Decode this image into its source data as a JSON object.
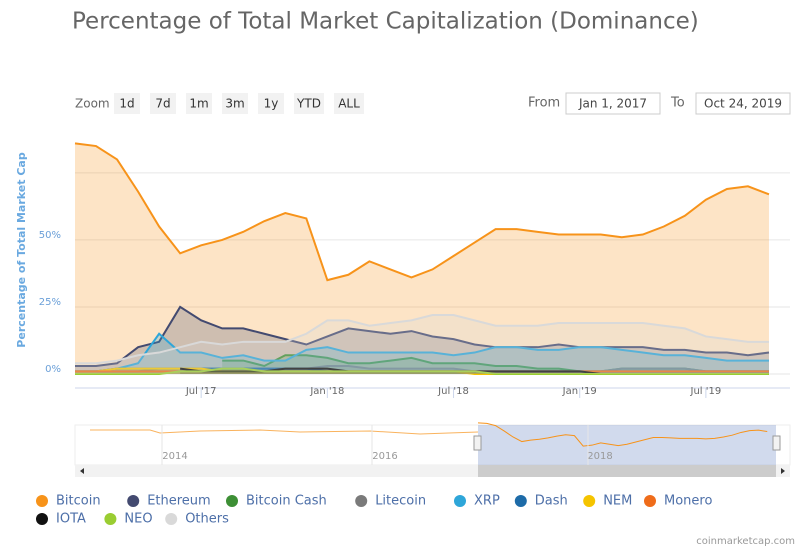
{
  "chart_data": {
    "type": "area",
    "title": "Percentage of Total Market Capitalization (Dominance)",
    "y_label": "Percentage of Total Market Cap",
    "x": [
      "2017-01",
      "2017-02",
      "2017-03",
      "2017-04",
      "2017-05",
      "2017-06",
      "2017-07",
      "2017-08",
      "2017-09",
      "2017-10",
      "2017-11",
      "2017-12",
      "2018-01",
      "2018-02",
      "2018-03",
      "2018-04",
      "2018-05",
      "2018-06",
      "2018-07",
      "2018-08",
      "2018-09",
      "2018-10",
      "2018-11",
      "2018-12",
      "2019-01",
      "2019-02",
      "2019-03",
      "2019-04",
      "2019-05",
      "2019-06",
      "2019-07",
      "2019-08",
      "2019-09",
      "2019-10"
    ],
    "xlim": [
      "2017-01",
      "2019-11"
    ],
    "xticks": [
      {
        "value": "2017-07",
        "label": "Jul '17"
      },
      {
        "value": "2018-01",
        "label": "Jan '18"
      },
      {
        "value": "2018-07",
        "label": "Jul '18"
      },
      {
        "value": "2019-01",
        "label": "Jan '19"
      },
      {
        "value": "2019-07",
        "label": "Jul '19"
      }
    ],
    "ylim": [
      0,
      88
    ],
    "yticks": [
      {
        "value": 0,
        "label": "0%"
      },
      {
        "value": 25,
        "label": "25%"
      },
      {
        "value": 50,
        "label": "50%"
      },
      {
        "value": 75,
        "label": null
      }
    ],
    "grid": true,
    "series": [
      {
        "name": "Bitcoin",
        "color": "#f7931a",
        "values": [
          86,
          85,
          80,
          68,
          55,
          45,
          48,
          50,
          53,
          57,
          60,
          58,
          35,
          37,
          42,
          39,
          36,
          39,
          44,
          49,
          54,
          54,
          53,
          52,
          52,
          52,
          51,
          52,
          55,
          59,
          65,
          69,
          70,
          67
        ]
      },
      {
        "name": "Ethereum",
        "color": "#434a70",
        "values": [
          3,
          3,
          4,
          10,
          12,
          25,
          20,
          17,
          17,
          15,
          13,
          11,
          14,
          17,
          16,
          15,
          16,
          14,
          13,
          11,
          10,
          10,
          10,
          11,
          10,
          10,
          10,
          10,
          9,
          9,
          8,
          8,
          7,
          8
        ]
      },
      {
        "name": "Bitcoin Cash",
        "color": "#3d8f35",
        "values": [
          null,
          null,
          null,
          null,
          null,
          null,
          null,
          5,
          5,
          3,
          7,
          7,
          6,
          4,
          4,
          5,
          6,
          4,
          4,
          4,
          3,
          3,
          2,
          2,
          1,
          1,
          2,
          2,
          2,
          2,
          1,
          1,
          1,
          1
        ]
      },
      {
        "name": "Litecoin",
        "color": "#7a7a7a",
        "values": [
          1,
          1,
          1,
          1,
          2,
          2,
          2,
          2,
          2,
          2,
          2,
          2,
          3,
          3,
          2,
          2,
          2,
          2,
          2,
          1,
          1,
          1,
          1,
          1,
          1,
          1,
          2,
          2,
          2,
          2,
          1,
          1,
          1,
          1
        ]
      },
      {
        "name": "XRP",
        "color": "#2ea6d9",
        "values": [
          1,
          1,
          2,
          4,
          15,
          8,
          8,
          6,
          7,
          5,
          5,
          9,
          10,
          8,
          8,
          8,
          8,
          8,
          7,
          8,
          10,
          10,
          9,
          9,
          10,
          10,
          9,
          8,
          7,
          7,
          6,
          5,
          5,
          5
        ]
      },
      {
        "name": "Dash",
        "color": "#1d6ba8",
        "values": [
          1,
          1,
          2,
          2,
          2,
          2,
          2,
          2,
          2,
          2,
          2,
          2,
          1,
          1,
          1,
          1,
          1,
          1,
          1,
          1,
          1,
          1,
          1,
          1,
          1,
          1,
          1,
          1,
          1,
          1,
          1,
          1,
          1,
          1
        ]
      },
      {
        "name": "NEM",
        "color": "#f5c400",
        "values": [
          1,
          1,
          2,
          2,
          2,
          2,
          2,
          1,
          1,
          1,
          1,
          1,
          1,
          1,
          1,
          1,
          1,
          1,
          1,
          0,
          0,
          0,
          0,
          0,
          0,
          0,
          0,
          0,
          0,
          0,
          0,
          0,
          0,
          0
        ]
      },
      {
        "name": "Monero",
        "color": "#ef6c1a",
        "values": [
          1,
          1,
          1,
          1,
          1,
          1,
          1,
          1,
          1,
          1,
          1,
          1,
          1,
          1,
          1,
          1,
          1,
          1,
          1,
          1,
          1,
          1,
          1,
          1,
          1,
          1,
          1,
          1,
          1,
          1,
          1,
          1,
          1,
          1
        ]
      },
      {
        "name": "IOTA",
        "color": "#111111",
        "values": [
          null,
          null,
          null,
          null,
          null,
          2,
          1,
          1,
          1,
          1,
          2,
          2,
          2,
          1,
          1,
          1,
          1,
          1,
          1,
          1,
          1,
          1,
          1,
          1,
          1,
          0,
          0,
          0,
          0,
          0,
          0,
          0,
          0,
          0
        ]
      },
      {
        "name": "NEO",
        "color": "#9acd32",
        "values": [
          0,
          0,
          0,
          0,
          0,
          1,
          1,
          2,
          2,
          1,
          1,
          1,
          1,
          1,
          1,
          1,
          1,
          1,
          1,
          1,
          0,
          0,
          0,
          0,
          0,
          0,
          0,
          0,
          0,
          0,
          0,
          0,
          0,
          0
        ]
      },
      {
        "name": "Others",
        "color": "#d9d9d9",
        "values": [
          4,
          4,
          5,
          7,
          8,
          10,
          12,
          11,
          12,
          12,
          12,
          15,
          20,
          20,
          18,
          19,
          20,
          22,
          22,
          20,
          18,
          18,
          18,
          19,
          19,
          19,
          19,
          19,
          18,
          17,
          14,
          13,
          12,
          12
        ]
      }
    ]
  },
  "zoom": {
    "label": "Zoom",
    "buttons": [
      "1d",
      "7d",
      "1m",
      "3m",
      "1y",
      "YTD",
      "ALL"
    ]
  },
  "range": {
    "from_label": "From",
    "from": "Jan 1, 2017",
    "to_label": "To",
    "to": "Oct 24, 2019"
  },
  "navigator": {
    "labels": [
      "2014",
      "2016",
      "2018"
    ]
  },
  "credits": "coinmarketcap.com"
}
